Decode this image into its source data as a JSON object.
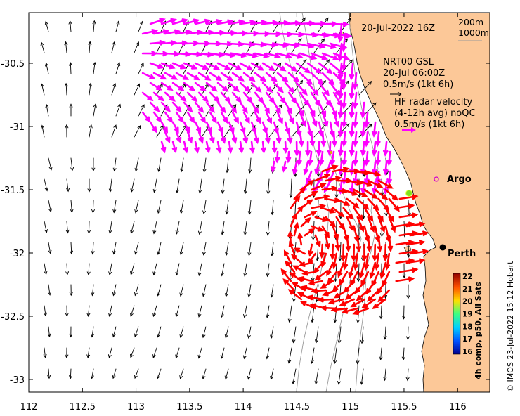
{
  "map": {
    "date_label": "20-Jul-2022 16Z",
    "depth_labels": [
      "200m",
      "1000m"
    ],
    "product_label": "NRT00 GSL",
    "product_time": "20-Jul 06:00Z",
    "scale_label": "0.5m/s (1kt 6h)",
    "hf_title_line1": "HF radar velocity",
    "hf_title_line2": "(4-12h avg) noQC",
    "hf_scale_label": "0.5m/s (1kt 6h)",
    "argo_label": "Argo",
    "city_label": "Perth",
    "credit": "© IMOS 23-Jul-2022 15:12 Hobart",
    "colorbar_label": "4h comp, p50, All Sats"
  },
  "axes": {
    "x_ticks": [
      "112",
      "112.5",
      "113",
      "113.5",
      "114",
      "114.5",
      "115",
      "115.5",
      "116"
    ],
    "x_values": [
      112,
      112.5,
      113,
      113.5,
      114,
      114.5,
      115,
      115.5,
      116
    ],
    "y_ticks": [
      "-30.5",
      "-31",
      "-31.5",
      "-32",
      "-32.5",
      "-33"
    ],
    "y_values": [
      -30.5,
      -31,
      -31.5,
      -32,
      -32.5,
      -33
    ],
    "xlim": [
      112,
      116.3
    ],
    "ylim": [
      -33.1,
      -30.1
    ]
  },
  "colorbar": {
    "ticks": [
      "22",
      "21",
      "20",
      "19",
      "18",
      "17",
      "16"
    ],
    "values": [
      22,
      21,
      20,
      19,
      18,
      17,
      16
    ],
    "range": [
      16,
      22
    ]
  },
  "colors": {
    "land": "#fcc898",
    "radar_north": "#ff00ff",
    "radar_south": "#ff0000",
    "model_arrows": "#000000",
    "isobath": "#9a9a9a"
  },
  "markers": {
    "argo": {
      "lon": 115.78,
      "lat": -31.45
    },
    "perth": {
      "lon": 115.86,
      "lat": -31.95
    },
    "green_dot": {
      "lon": 115.53,
      "lat": -31.53
    }
  }
}
